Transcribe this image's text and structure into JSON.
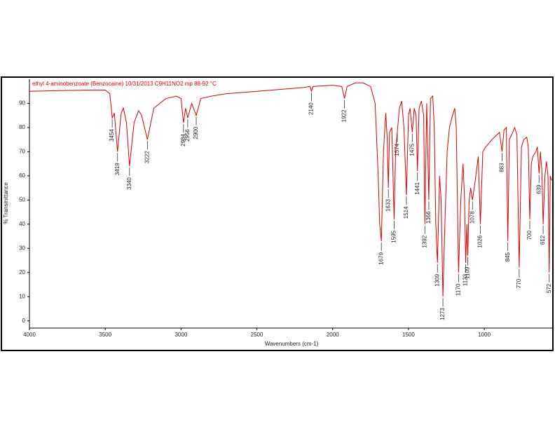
{
  "chart_data": {
    "type": "line",
    "title": "ethyl 4-aminobenzoate (Benzocaine) 10/31/2013 C9H11NO2 mp 88-92 °C",
    "x_label": "Wavenumbers (cm-1)",
    "y_label": "% Transmittance",
    "color": "#e00000",
    "xlim": [
      4000,
      550
    ],
    "ylim": [
      -3,
      100
    ],
    "xticks": [
      4000,
      3500,
      3000,
      2500,
      2000,
      1500,
      1000
    ],
    "yticks": [
      0,
      10,
      20,
      30,
      40,
      50,
      60,
      70,
      80,
      90
    ],
    "x": [
      4000,
      3800,
      3600,
      3500,
      3470,
      3460,
      3454,
      3440,
      3419,
      3395,
      3380,
      3360,
      3340,
      3310,
      3280,
      3260,
      3222,
      3180,
      3100,
      3030,
      3000,
      2984,
      2970,
      2956,
      2930,
      2900,
      2870,
      2800,
      2700,
      2600,
      2500,
      2400,
      2300,
      2200,
      2150,
      2140,
      2130,
      2000,
      1940,
      1922,
      1905,
      1850,
      1800,
      1750,
      1720,
      1700,
      1690,
      1679,
      1665,
      1650,
      1640,
      1633,
      1625,
      1610,
      1595,
      1585,
      1574,
      1560,
      1545,
      1530,
      1514,
      1500,
      1490,
      1475,
      1462,
      1450,
      1441,
      1430,
      1415,
      1400,
      1392,
      1380,
      1366,
      1355,
      1340,
      1330,
      1320,
      1309,
      1295,
      1285,
      1273,
      1260,
      1245,
      1230,
      1210,
      1195,
      1185,
      1170,
      1155,
      1140,
      1130,
      1123,
      1115,
      1109,
      1100,
      1090,
      1078,
      1060,
      1040,
      1026,
      1010,
      990,
      950,
      900,
      883,
      870,
      855,
      845,
      835,
      820,
      800,
      785,
      770,
      755,
      740,
      720,
      710,
      700,
      690,
      680,
      660,
      650,
      639,
      630,
      620,
      612,
      600,
      590,
      580,
      572,
      565,
      555
    ],
    "values": [
      95,
      95.3,
      95.5,
      95.5,
      94,
      88,
      84,
      86,
      70,
      86,
      88,
      82,
      64,
      82,
      87,
      85,
      75,
      88,
      92,
      93,
      92,
      82,
      88,
      84,
      90,
      85,
      92,
      93,
      94,
      94.5,
      95,
      95.5,
      96,
      96.5,
      97,
      95,
      97,
      97.5,
      97,
      92,
      97,
      98.5,
      98.5,
      97,
      90,
      60,
      40,
      33,
      70,
      86,
      75,
      55,
      78,
      80,
      42,
      70,
      78,
      88,
      91,
      80,
      52,
      85,
      88,
      78,
      88,
      85,
      62,
      88,
      91,
      85,
      40,
      90,
      50,
      92,
      93,
      80,
      40,
      24,
      60,
      50,
      10,
      40,
      70,
      80,
      85,
      88,
      80,
      20,
      50,
      65,
      50,
      24,
      40,
      27,
      50,
      55,
      50,
      58,
      68,
      40,
      70,
      72,
      75,
      78,
      70,
      79,
      80,
      33,
      75,
      77,
      80,
      77,
      22,
      72,
      75,
      76,
      72,
      42,
      65,
      68,
      70,
      72,
      61,
      70,
      62,
      40,
      60,
      66,
      60,
      20,
      60,
      58
    ],
    "peaks": [
      3454,
      3419,
      3340,
      3222,
      2984,
      2956,
      2900,
      2140,
      1922,
      1679,
      1633,
      1595,
      1574,
      1514,
      1475,
      1441,
      1392,
      1366,
      1309,
      1273,
      1170,
      1123,
      1109,
      1078,
      1026,
      883,
      845,
      770,
      700,
      639,
      612,
      572
    ]
  }
}
